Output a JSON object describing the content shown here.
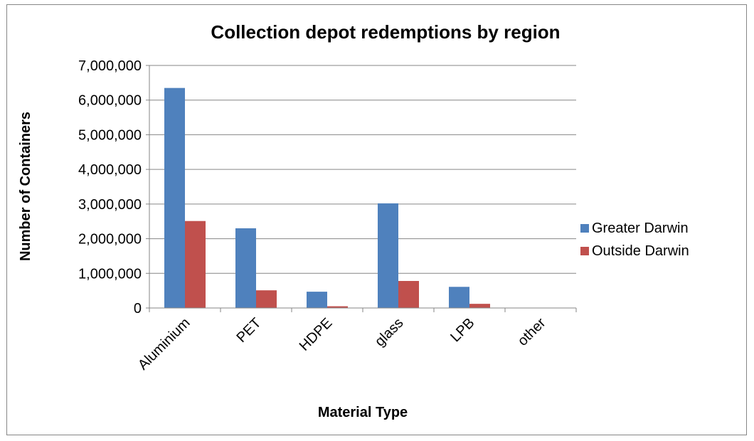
{
  "chart_data": {
    "type": "bar",
    "title": "Collection depot redemptions by region",
    "xlabel": "Material Type",
    "ylabel": "Number of Containers",
    "categories": [
      "Aluminium",
      "PET",
      "HDPE",
      "glass",
      "LPB",
      "other"
    ],
    "series": [
      {
        "name": "Greater Darwin",
        "color": "#4f81bd",
        "values": [
          6350000,
          2300000,
          470000,
          3020000,
          610000,
          0
        ]
      },
      {
        "name": "Outside Darwin",
        "color": "#c0504d",
        "values": [
          2510000,
          510000,
          50000,
          780000,
          120000,
          0
        ]
      }
    ],
    "ylim": [
      0,
      7000000
    ],
    "yticks": [
      "0",
      "1,000,000",
      "2,000,000",
      "3,000,000",
      "4,000,000",
      "5,000,000",
      "6,000,000",
      "7,000,000"
    ],
    "grid": true,
    "legend_position": "right"
  }
}
